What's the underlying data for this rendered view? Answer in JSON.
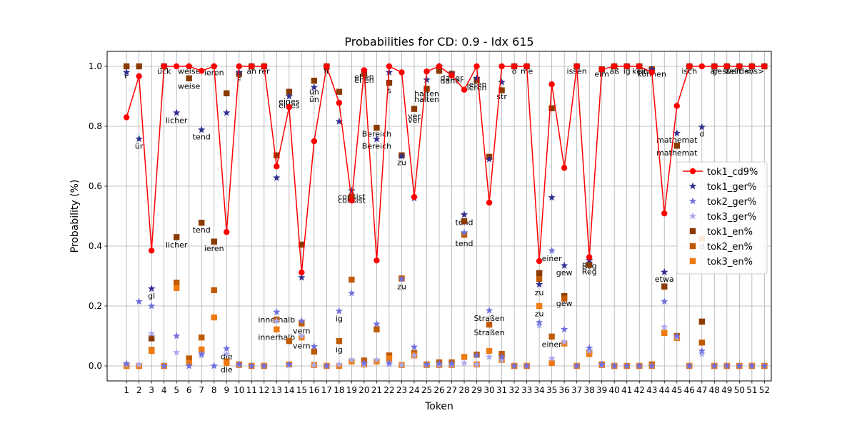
{
  "chart_data": {
    "type": "line",
    "title": "Probabilities for CD: 0.9 - Idx 615",
    "xlabel": "Token",
    "ylabel": "Probability (%)",
    "xlim": [
      -0.55,
      52.55
    ],
    "ylim": [
      -0.05,
      1.05
    ],
    "grid": true,
    "legend_position": "center-right",
    "x": [
      1,
      2,
      3,
      4,
      5,
      6,
      7,
      8,
      9,
      10,
      11,
      12,
      13,
      14,
      15,
      16,
      17,
      18,
      19,
      20,
      21,
      22,
      23,
      24,
      25,
      26,
      27,
      28,
      29,
      30,
      31,
      32,
      33,
      34,
      35,
      36,
      37,
      38,
      39,
      40,
      41,
      42,
      43,
      44,
      45,
      46,
      47,
      48,
      49,
      50,
      51,
      52
    ],
    "xticks": [
      1,
      2,
      3,
      4,
      5,
      6,
      7,
      8,
      9,
      10,
      11,
      12,
      13,
      14,
      15,
      16,
      17,
      18,
      19,
      20,
      21,
      22,
      23,
      24,
      25,
      26,
      27,
      28,
      29,
      30,
      31,
      32,
      33,
      34,
      35,
      36,
      37,
      38,
      39,
      40,
      41,
      42,
      43,
      44,
      45,
      46,
      47,
      48,
      49,
      50,
      51,
      52
    ],
    "yticks": [
      0.0,
      0.2,
      0.4,
      0.6,
      0.8,
      1.0
    ],
    "ytick_labels": [
      "0.0",
      "0.2",
      "0.4",
      "0.6",
      "0.8",
      "1.0"
    ],
    "series": [
      {
        "name": "tok1_cd9%",
        "kind": "line",
        "color": "#ff0000",
        "values": [
          0.83,
          0.967,
          0.385,
          1.0,
          1.0,
          1.0,
          0.985,
          1.0,
          0.447,
          1.0,
          1.0,
          1.0,
          0.666,
          0.864,
          0.312,
          0.75,
          1.0,
          0.878,
          0.552,
          0.987,
          0.352,
          1.0,
          0.98,
          0.564,
          0.983,
          1.0,
          0.97,
          0.922,
          1.0,
          0.545,
          1.0,
          1.0,
          1.0,
          0.35,
          0.94,
          0.661,
          1.0,
          0.363,
          0.99,
          1.0,
          1.0,
          1.0,
          0.98,
          0.509,
          0.868,
          1.0,
          1.0,
          1.0,
          1.0,
          1.0,
          1.0,
          1.0
        ]
      },
      {
        "name": "tok1_ger%",
        "kind": "marker",
        "marker": "star",
        "color": "#303090",
        "values": [
          0.98,
          0.758,
          0.258,
          1.0,
          0.845,
          1.0,
          0.788,
          1.0,
          0.845,
          0.98,
          1.0,
          1.0,
          0.628,
          0.9,
          0.295,
          0.93,
          1.0,
          0.816,
          0.585,
          0.985,
          0.757,
          0.98,
          0.7,
          0.56,
          0.955,
          1.0,
          0.975,
          0.505,
          0.96,
          0.69,
          0.947,
          1.0,
          1.0,
          0.272,
          0.562,
          0.335,
          1.0,
          0.353,
          0.99,
          1.0,
          1.0,
          1.0,
          0.99,
          0.313,
          0.777,
          1.0,
          0.797,
          1.0,
          1.0,
          1.0,
          1.0,
          1.0
        ]
      },
      {
        "name": "tok2_ger%",
        "kind": "marker",
        "marker": "star",
        "color": "#7070dd",
        "values": [
          0.008,
          0.215,
          0.2,
          0.0,
          0.1,
          0.0,
          0.04,
          0.0,
          0.058,
          0.005,
          0.0,
          0.0,
          0.18,
          0.005,
          0.15,
          0.065,
          0.0,
          0.183,
          0.243,
          0.01,
          0.14,
          0.01,
          0.29,
          0.063,
          0.005,
          0.008,
          0.008,
          0.445,
          0.035,
          0.185,
          0.03,
          0.0,
          0.0,
          0.145,
          0.385,
          0.122,
          0.0,
          0.06,
          0.005,
          0.0,
          0.0,
          0.0,
          0.0,
          0.215,
          0.1,
          0.0,
          0.05,
          0.0,
          0.0,
          0.0,
          0.0,
          0.0
        ]
      },
      {
        "name": "tok3_ger%",
        "kind": "marker",
        "marker": "star",
        "color": "#aaaaee",
        "values": [
          0.005,
          0.005,
          0.108,
          0.0,
          0.045,
          0.0,
          0.035,
          0.0,
          0.04,
          0.003,
          0.0,
          0.0,
          0.15,
          0.003,
          0.1,
          0.003,
          0.0,
          0.005,
          0.02,
          0.005,
          0.02,
          0.005,
          0.003,
          0.035,
          0.003,
          0.003,
          0.003,
          0.01,
          0.005,
          0.03,
          0.02,
          0.0,
          0.0,
          0.135,
          0.025,
          0.08,
          0.0,
          0.05,
          0.003,
          0.0,
          0.0,
          0.0,
          0.0,
          0.13,
          0.095,
          0.0,
          0.04,
          0.0,
          0.0,
          0.0,
          0.0,
          0.0
        ]
      },
      {
        "name": "tok1_en%",
        "kind": "marker",
        "marker": "square",
        "color": "#8b3a00",
        "values": [
          1.0,
          1.0,
          0.092,
          1.0,
          0.43,
          0.96,
          0.478,
          0.415,
          0.91,
          0.975,
          1.0,
          1.0,
          0.703,
          0.915,
          0.405,
          0.952,
          1.0,
          0.915,
          0.565,
          0.975,
          0.795,
          0.945,
          0.703,
          0.858,
          0.925,
          0.985,
          0.975,
          0.483,
          0.955,
          0.698,
          0.92,
          1.0,
          1.0,
          0.31,
          0.86,
          0.233,
          1.0,
          0.338,
          0.99,
          1.0,
          1.0,
          1.0,
          0.99,
          0.265,
          0.735,
          1.0,
          0.148,
          1.0,
          1.0,
          1.0,
          1.0,
          1.0
        ]
      },
      {
        "name": "tok2_en%",
        "kind": "marker",
        "marker": "square",
        "color": "#c05a00",
        "values": [
          0.0,
          0.0,
          0.053,
          0.0,
          0.278,
          0.025,
          0.095,
          0.253,
          0.015,
          0.005,
          0.0,
          0.0,
          0.155,
          0.083,
          0.142,
          0.048,
          0.0,
          0.083,
          0.288,
          0.018,
          0.122,
          0.035,
          0.292,
          0.043,
          0.005,
          0.012,
          0.012,
          0.438,
          0.038,
          0.138,
          0.04,
          0.0,
          0.0,
          0.29,
          0.098,
          0.225,
          0.0,
          0.045,
          0.005,
          0.0,
          0.0,
          0.0,
          0.005,
          0.11,
          0.1,
          0.0,
          0.078,
          0.0,
          0.0,
          0.0,
          0.0,
          0.0
        ]
      },
      {
        "name": "tok3_en%",
        "kind": "marker",
        "marker": "square",
        "color": "#ef7a10",
        "values": [
          0.0,
          0.0,
          0.05,
          0.0,
          0.26,
          0.01,
          0.055,
          0.162,
          0.01,
          0.003,
          0.0,
          0.0,
          0.122,
          0.005,
          0.095,
          0.003,
          0.0,
          0.0,
          0.015,
          0.005,
          0.015,
          0.025,
          0.003,
          0.035,
          0.003,
          0.003,
          0.003,
          0.03,
          0.005,
          0.05,
          0.02,
          0.0,
          0.0,
          0.2,
          0.01,
          0.075,
          0.0,
          0.04,
          0.003,
          0.0,
          0.0,
          0.0,
          0.0,
          0.11,
          0.093,
          0.0,
          0.425,
          0.0,
          0.0,
          0.0,
          0.0,
          0.0
        ]
      }
    ],
    "annotations": [
      {
        "text": "F",
        "x": 1,
        "y": 0.97
      },
      {
        "text": "ür",
        "x": 2,
        "y": 0.735
      },
      {
        "text": "gl",
        "x": 3,
        "y": 0.235
      },
      {
        "text": "ück",
        "x": 4,
        "y": 0.985
      },
      {
        "text": "licher",
        "x": 5,
        "y": 0.82
      },
      {
        "text": "licher",
        "x": 5,
        "y": 0.405
      },
      {
        "text": "weise",
        "x": 6,
        "y": 0.985
      },
      {
        "text": "weise",
        "x": 6,
        "y": 0.935
      },
      {
        "text": "tend",
        "x": 7,
        "y": 0.765
      },
      {
        "text": "tend",
        "x": 7,
        "y": 0.455
      },
      {
        "text": "ieren",
        "x": 8,
        "y": 0.98
      },
      {
        "text": "ieren",
        "x": 8,
        "y": 0.393
      },
      {
        "text": "die",
        "x": 9,
        "y": 0.032
      },
      {
        "text": "die",
        "x": 9,
        "y": -0.012
      },
      {
        "text": "F",
        "x": 10,
        "y": 0.955
      },
      {
        "text": "ah",
        "x": 11,
        "y": 0.985
      },
      {
        "text": "rer",
        "x": 12,
        "y": 0.985
      },
      {
        "text": "innerhalb",
        "x": 13,
        "y": 0.155
      },
      {
        "text": "innerhalb",
        "x": 13,
        "y": 0.097
      },
      {
        "text": "eines",
        "x": 14,
        "y": 0.883
      },
      {
        "text": "eines",
        "x": 14,
        "y": 0.87
      },
      {
        "text": "vern",
        "x": 15,
        "y": 0.118
      },
      {
        "text": "vern",
        "x": 15,
        "y": 0.068
      },
      {
        "text": "ün",
        "x": 16,
        "y": 0.915
      },
      {
        "text": "ün",
        "x": 16,
        "y": 0.89
      },
      {
        "text": "ft",
        "x": 17,
        "y": 0.985
      },
      {
        "text": "ig",
        "x": 18,
        "y": 0.158
      },
      {
        "text": "ig",
        "x": 18,
        "y": 0.055
      },
      {
        "text": "consist",
        "x": 19,
        "y": 0.565
      },
      {
        "text": "consist",
        "x": 19,
        "y": 0.553
      },
      {
        "text": "ehen",
        "x": 20,
        "y": 0.965
      },
      {
        "text": "ehen",
        "x": 20,
        "y": 0.955
      },
      {
        "text": "Bereich",
        "x": 21,
        "y": 0.775
      },
      {
        "text": "Bereich",
        "x": 21,
        "y": 0.735
      },
      {
        "text": "s",
        "x": 22,
        "y": 0.92
      },
      {
        "text": "zu",
        "x": 23,
        "y": 0.68
      },
      {
        "text": "zu",
        "x": 23,
        "y": 0.265
      },
      {
        "text": "ver",
        "x": 24,
        "y": 0.835
      },
      {
        "text": "ver",
        "x": 24,
        "y": 0.822
      },
      {
        "text": "halten",
        "x": 25,
        "y": 0.91
      },
      {
        "text": "halten",
        "x": 25,
        "y": 0.89
      },
      {
        "text": "daher",
        "x": 27,
        "y": 0.962
      },
      {
        "text": "daher",
        "x": 27,
        "y": 0.952
      },
      {
        "text": "tend",
        "x": 28,
        "y": 0.48
      },
      {
        "text": "tend",
        "x": 28,
        "y": 0.41
      },
      {
        "text": "ieren",
        "x": 29,
        "y": 0.94
      },
      {
        "text": "ieren",
        "x": 29,
        "y": 0.93
      },
      {
        "text": "Straßen",
        "x": 30,
        "y": 0.16
      },
      {
        "text": "Straßen",
        "x": 30,
        "y": 0.112
      },
      {
        "text": "str",
        "x": 31,
        "y": 0.9
      },
      {
        "text": "ö",
        "x": 32,
        "y": 0.985
      },
      {
        "text": "me",
        "x": 33,
        "y": 0.985
      },
      {
        "text": "zu",
        "x": 34,
        "y": 0.245
      },
      {
        "text": "zu",
        "x": 34,
        "y": 0.175
      },
      {
        "text": "einer",
        "x": 35,
        "y": 0.36
      },
      {
        "text": "einer",
        "x": 35,
        "y": 0.073
      },
      {
        "text": "gew",
        "x": 36,
        "y": 0.312
      },
      {
        "text": "gew",
        "x": 36,
        "y": 0.21
      },
      {
        "text": "issen",
        "x": 37,
        "y": 0.985
      },
      {
        "text": "Reg",
        "x": 38,
        "y": 0.335
      },
      {
        "text": "Reg",
        "x": 38,
        "y": 0.315
      },
      {
        "text": "elm",
        "x": 39,
        "y": 0.975
      },
      {
        "text": "äß",
        "x": 40,
        "y": 0.985
      },
      {
        "text": "ig",
        "x": 41,
        "y": 0.985
      },
      {
        "text": "keit",
        "x": 42,
        "y": 0.985
      },
      {
        "text": "und",
        "x": 42.5,
        "y": 0.985
      },
      {
        "text": "können",
        "x": 43,
        "y": 0.975
      },
      {
        "text": "etwa",
        "x": 44,
        "y": 0.29
      },
      {
        "text": "mathemat",
        "x": 45,
        "y": 0.755
      },
      {
        "text": "mathemat",
        "x": 45,
        "y": 0.712
      },
      {
        "text": "isch",
        "x": 46,
        "y": 0.985
      },
      {
        "text": "d",
        "x": 47,
        "y": 0.775
      },
      {
        "text": "d",
        "x": 47,
        "y": 0.4
      },
      {
        "text": "ar",
        "x": 48,
        "y": 0.985
      },
      {
        "text": "gestellt",
        "x": 49,
        "y": 0.985
      },
      {
        "text": "werden",
        "x": 50,
        "y": 0.985
      },
      {
        "text": "</s>",
        "x": 51.2,
        "y": 0.985
      }
    ]
  }
}
